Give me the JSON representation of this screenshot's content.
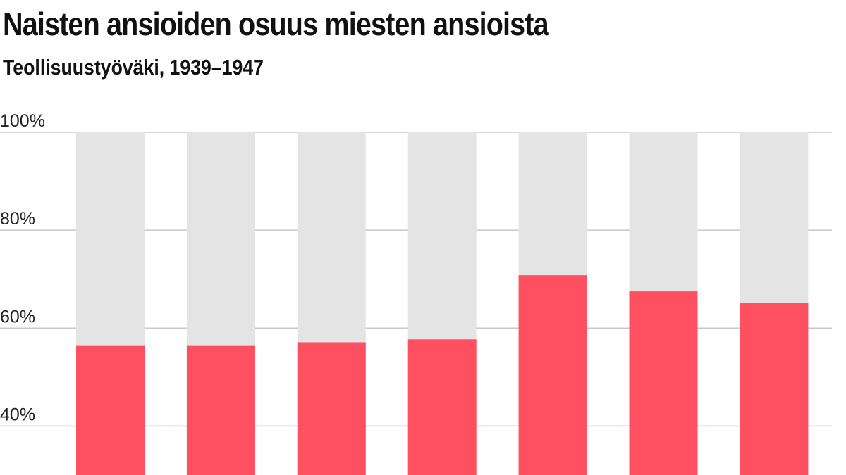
{
  "chart_data": {
    "type": "bar",
    "title": "Naisten ansioiden osuus miesten ansioista",
    "subtitle": "Teollisuustyöväki, 1939–1947",
    "categories": [
      "",
      "",
      "",
      "",
      "",
      "",
      ""
    ],
    "values": [
      56.5,
      56.5,
      57.1,
      57.7,
      70.8,
      67.5,
      65.2
    ],
    "max_value": 100,
    "ylim": [
      30,
      100
    ],
    "yticks": [
      40,
      60,
      80,
      100
    ],
    "ytick_labels": [
      "40%",
      "60%",
      "80%",
      "100%"
    ],
    "grid": true,
    "colors": {
      "bar": "#ff5062",
      "background_bar": "#e4e4e4",
      "grid": "#c8c8c8"
    }
  }
}
